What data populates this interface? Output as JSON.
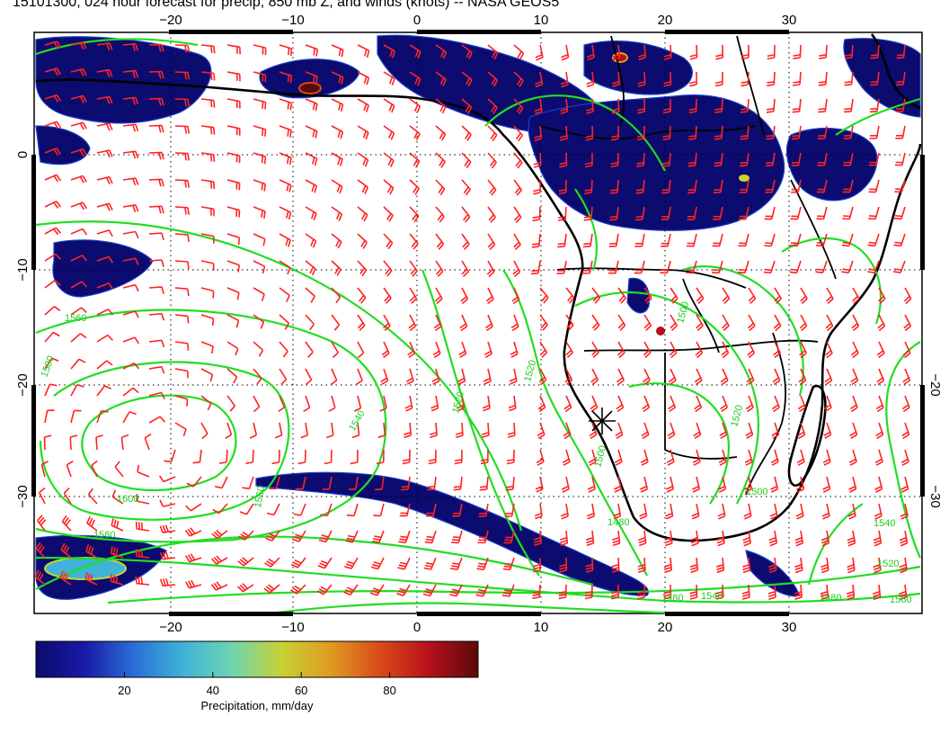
{
  "title": "15101300, 024 hour forecast for precip, 850 mb Z, and winds (knots) -- NASA GEOS5",
  "axes": {
    "lon_ticks": [
      "−20",
      "−10",
      "0",
      "10",
      "20",
      "30"
    ],
    "lat_ticks_left": [
      "0",
      "−10",
      "−20",
      "−30"
    ],
    "lat_ticks_right": [
      "−20",
      "−30"
    ]
  },
  "contour_labels": [
    "1560",
    "1580",
    "1600",
    "1580",
    "1560",
    "1540",
    "1520",
    "1520",
    "1500",
    "1480",
    "1500",
    "1520",
    "1540",
    "1560",
    "1480",
    "1480",
    "1520",
    "1540",
    "1500"
  ],
  "colorbar": {
    "ticks": [
      "20",
      "40",
      "60",
      "80"
    ],
    "label": "Precipitation, mm/day",
    "range": [
      0,
      100
    ],
    "colors": [
      "#0b0b6e",
      "#1a1aa8",
      "#2a6fd6",
      "#3fb4d8",
      "#6fd4b0",
      "#c8d233",
      "#e09a22",
      "#d84a18",
      "#b8101a",
      "#5a0a0a"
    ]
  },
  "map_colors": {
    "coast": "#000000",
    "height_contour": "#22dd22",
    "wind_barb": "#ff2222",
    "precip_core": "#0b0b70"
  }
}
